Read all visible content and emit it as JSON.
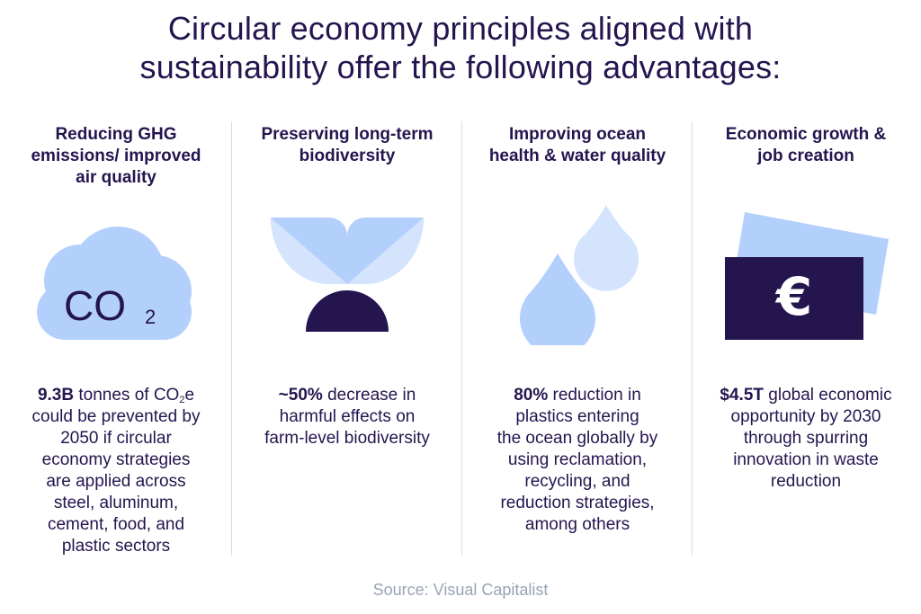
{
  "title": {
    "line1": "Circular economy principles aligned with",
    "line2": "sustainability offer the following advantages:"
  },
  "columns": [
    {
      "heading": [
        "Reducing GHG",
        "emissions/ improved",
        "air quality"
      ],
      "icon": "co2-cloud-icon",
      "icon_text": "CO",
      "icon_sub": "2",
      "body_strong": "9.3B",
      "body_first": " tonnes of CO",
      "body_first_sub": "2",
      "body_first_end": "e",
      "body_lines": [
        "could be prevented by",
        "2050 if circular",
        "economy strategies",
        "are applied across",
        "steel, aluminum,",
        "cement, food, and",
        "plastic sectors"
      ]
    },
    {
      "heading": [
        "Preserving long-term",
        "biodiversity"
      ],
      "icon": "sprout-icon",
      "body_strong": "~50%",
      "body_first": " decrease in",
      "body_lines": [
        "harmful effects on",
        "farm-level biodiversity"
      ]
    },
    {
      "heading": [
        "Improving ocean",
        "health & water quality"
      ],
      "icon": "water-drops-icon",
      "body_strong": "80%",
      "body_first": " reduction in",
      "body_lines": [
        "plastics entering",
        "the ocean globally by",
        "using reclamation,",
        "recycling, and",
        "reduction strategies,",
        "among others"
      ]
    },
    {
      "heading": [
        "Economic growth &",
        "job creation"
      ],
      "icon": "euro-banknote-icon",
      "icon_text": "€",
      "body_strong": "$4.5T",
      "body_first": " global economic",
      "body_lines": [
        "opportunity by 2030",
        "through spurring",
        "innovation in waste",
        "reduction"
      ]
    }
  ],
  "colors": {
    "navy": "#24154f",
    "light_blue": "#b3cffb",
    "pale_blue": "#d4e4fd",
    "divider": "#d7dcee",
    "source_gray": "#9aa3b5"
  },
  "source": "Source: Visual Capitalist"
}
